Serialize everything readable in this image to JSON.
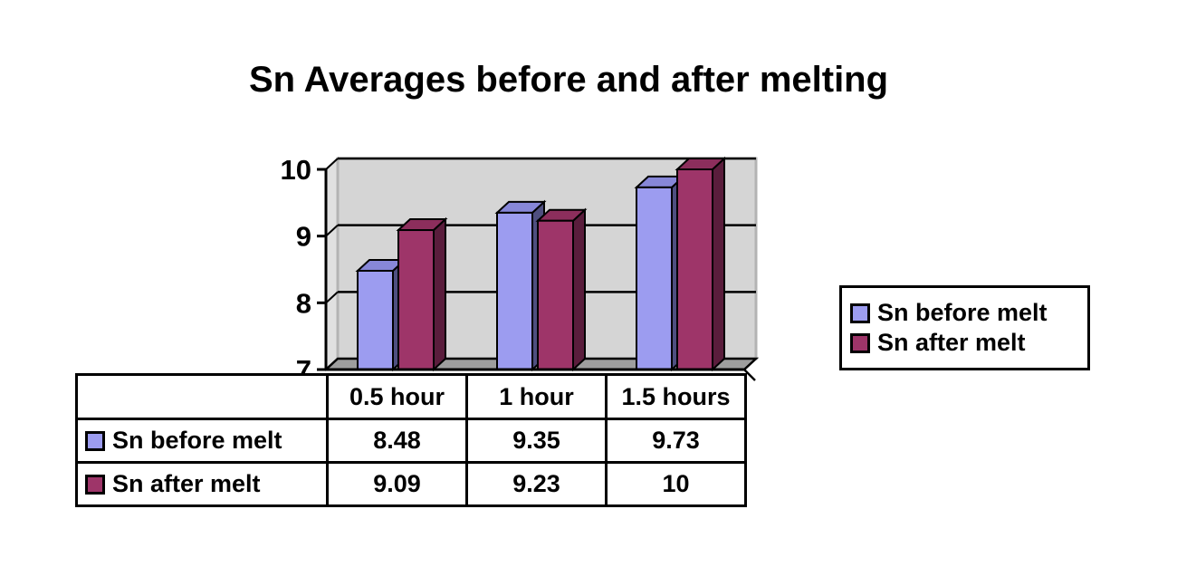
{
  "chart_data": {
    "type": "bar",
    "variant": "3d-clustered-column",
    "title": "Sn Averages before and after melting",
    "categories": [
      "0.5 hour",
      "1 hour",
      "1.5 hours"
    ],
    "series": [
      {
        "name": "Sn before melt",
        "values": [
          8.48,
          9.35,
          9.73
        ],
        "color": "#9C9CF0",
        "top_color": "#8787D8",
        "side_color": "#4F4F80"
      },
      {
        "name": "Sn after melt",
        "values": [
          9.09,
          9.23,
          10
        ],
        "color": "#9E3569",
        "top_color": "#8C2E5C",
        "side_color": "#5A1D3C"
      }
    ],
    "xlabel": "",
    "ylabel": "",
    "ylim": [
      7,
      10
    ],
    "yticks": [
      7,
      8,
      9,
      10
    ],
    "grid": "horizontal",
    "legend_position": "right",
    "data_table_shown": true,
    "colors": {
      "back_wall": "#D5D5D5",
      "side_wall": "#E0E0E0",
      "floor": "#9E9E9E",
      "wall_border": "#B3B3B3",
      "gridline": "#000000",
      "axis": "#000000",
      "background": "#FFFFFF"
    }
  }
}
